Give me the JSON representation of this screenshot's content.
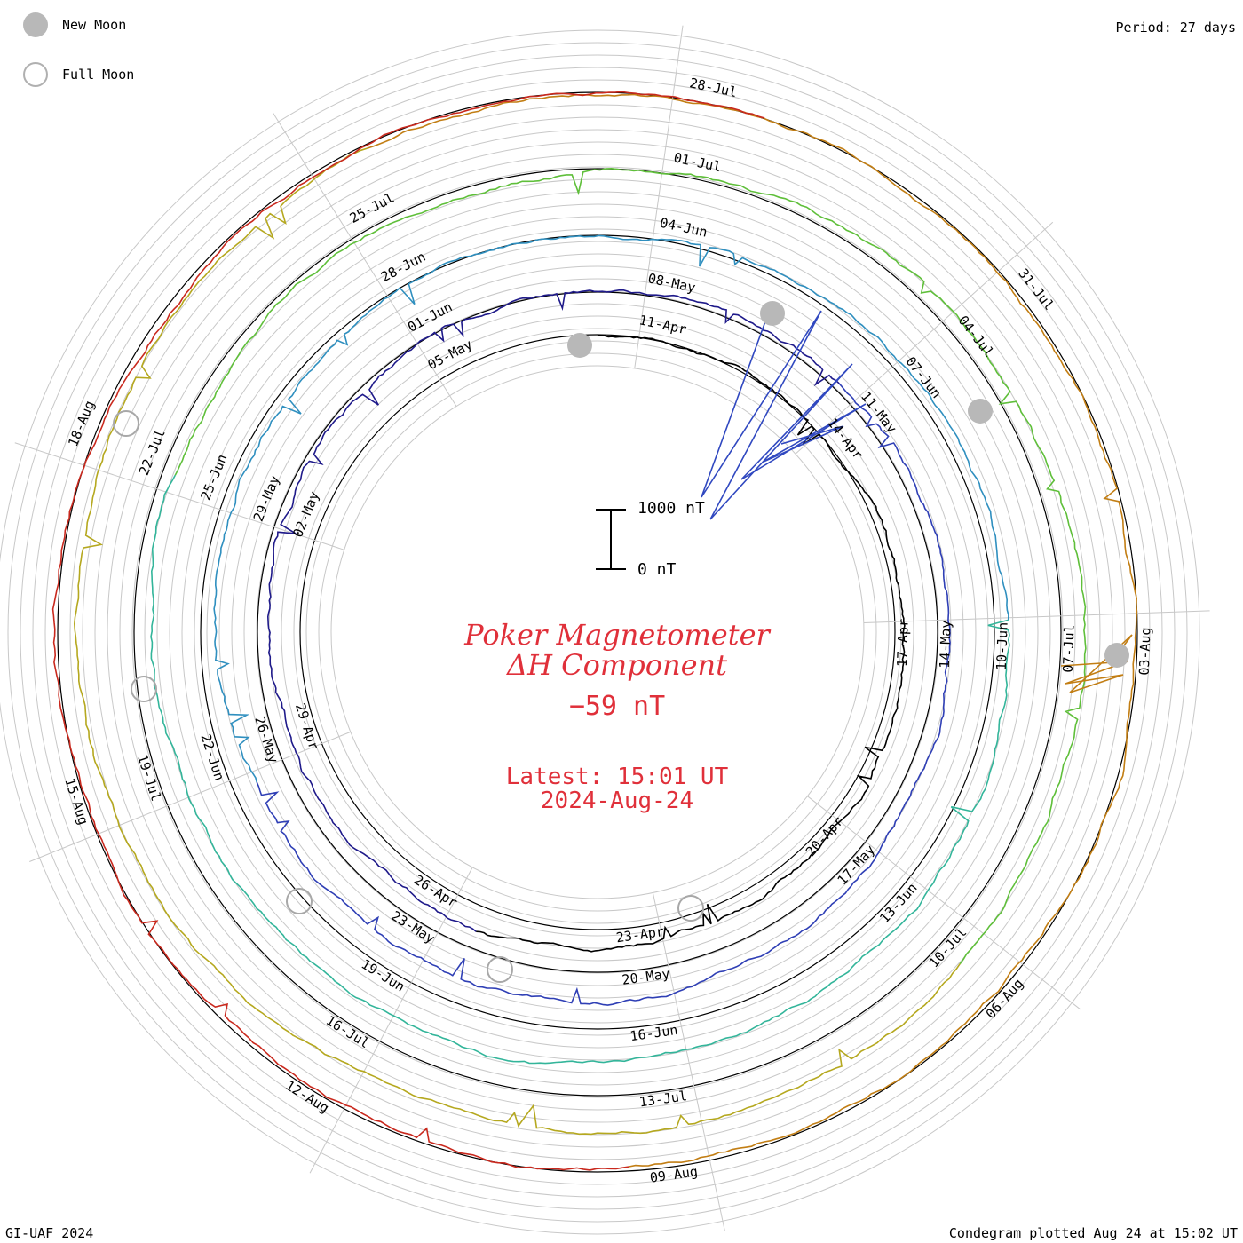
{
  "header": {
    "period": "Period: 27 days",
    "legend_new": "New Moon",
    "legend_full": "Full Moon"
  },
  "footer": {
    "left": "GI-UAF 2024",
    "right": "Condegram plotted Aug 24 at 15:02 UT"
  },
  "center": {
    "title_line1": "Poker Magnetometer",
    "title_line2": "ΔH Component",
    "value": "−59 nT",
    "latest": "Latest: 15:01 UT",
    "date": "2024-Aug-24"
  },
  "scale": {
    "top_label": "1000 nT",
    "bottom_label": "0 nT"
  },
  "chart_data": {
    "type": "spiral-condegram",
    "period_days": 27,
    "unit": "nT",
    "series_colors": [
      "#000000",
      "#1f1a8a",
      "#2f3fb5",
      "#2f8fbf",
      "#33b59a",
      "#5fbf3a",
      "#b5a81f",
      "#c27e14",
      "#c9291e"
    ],
    "rings": [
      {
        "start": "11-Apr",
        "labels": [
          "11-Apr",
          "14-Apr",
          "17-Apr",
          "20-Apr",
          "23-Apr",
          "26-Apr",
          "29-Apr",
          "02-May",
          "05-May"
        ]
      },
      {
        "start": "08-May",
        "labels": [
          "08-May",
          "11-May",
          "14-May",
          "17-May",
          "20-May",
          "23-May",
          "26-May",
          "29-May",
          "01-Jun"
        ]
      },
      {
        "start": "04-Jun",
        "labels": [
          "04-Jun",
          "07-Jun",
          "10-Jun",
          "13-Jun",
          "16-Jun",
          "19-Jun",
          "22-Jun",
          "25-Jun",
          "28-Jun"
        ]
      },
      {
        "start": "01-Jul",
        "labels": [
          "01-Jul",
          "04-Jul",
          "07-Jul",
          "10-Jul",
          "13-Jul",
          "16-Jul",
          "19-Jul",
          "22-Jul",
          "25-Jul"
        ]
      },
      {
        "start": "28-Jul",
        "labels": [
          "28-Jul",
          "31-Jul",
          "03-Aug",
          "06-Aug",
          "09-Aug",
          "12-Aug",
          "15-Aug",
          "18-Aug",
          ""
        ]
      }
    ],
    "new_moons": [
      "2024-05-08",
      "2024-06-06",
      "2024-07-05",
      "2024-08-04"
    ],
    "full_moons": [
      "2024-04-23",
      "2024-05-23",
      "2024-06-22",
      "2024-07-21",
      "2024-08-19"
    ],
    "latest_value": -59,
    "latest_time": "2024-08-24 15:01 UT",
    "notable_events": [
      {
        "date": "2024-05-10",
        "description": "major storm spikes up to ~1000 nT"
      },
      {
        "date": "2024-08-04",
        "description": "storm activity"
      }
    ]
  }
}
